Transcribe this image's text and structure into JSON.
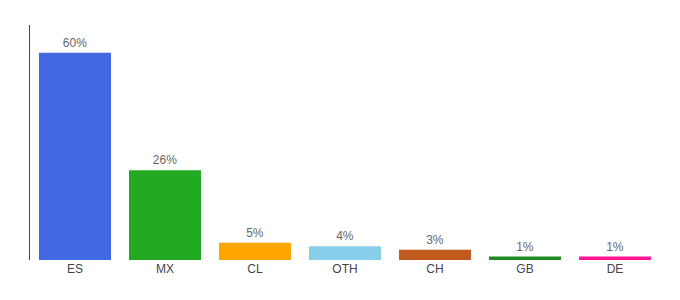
{
  "chart_data": {
    "type": "bar",
    "categories": [
      "ES",
      "MX",
      "CL",
      "OTH",
      "CH",
      "GB",
      "DE"
    ],
    "values": [
      60,
      26,
      5,
      4,
      3,
      1,
      1
    ],
    "value_labels": [
      "60%",
      "26%",
      "5%",
      "4%",
      "3%",
      "1%",
      "1%"
    ],
    "colors": [
      "#4169E1",
      "#22AA22",
      "#FFA500",
      "#87CEEB",
      "#C05A1F",
      "#1E8B1E",
      "#FF1493"
    ],
    "data_labels": true,
    "ylim": [
      0,
      68
    ],
    "grid": false,
    "tick_labels": "x"
  }
}
